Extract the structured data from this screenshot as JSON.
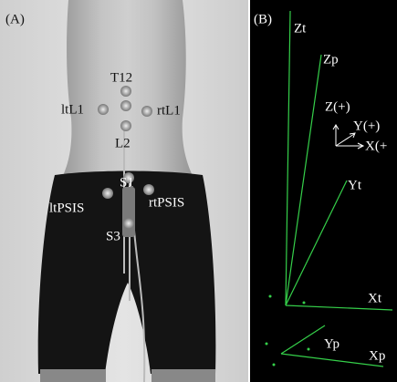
{
  "panel_a": {
    "label": "(A)",
    "markers": [
      "T12",
      "ltL1",
      "rtL1",
      "L2",
      "S1",
      "ltPSIS",
      "rtPSIS",
      "S3"
    ]
  },
  "panel_b": {
    "label": "(B)",
    "axes": [
      "Zt",
      "Zp",
      "Yt",
      "Xt",
      "Yp",
      "Xp"
    ],
    "reference_axes": [
      "Z(+)",
      "Y(+)",
      "X(+"
    ]
  }
}
